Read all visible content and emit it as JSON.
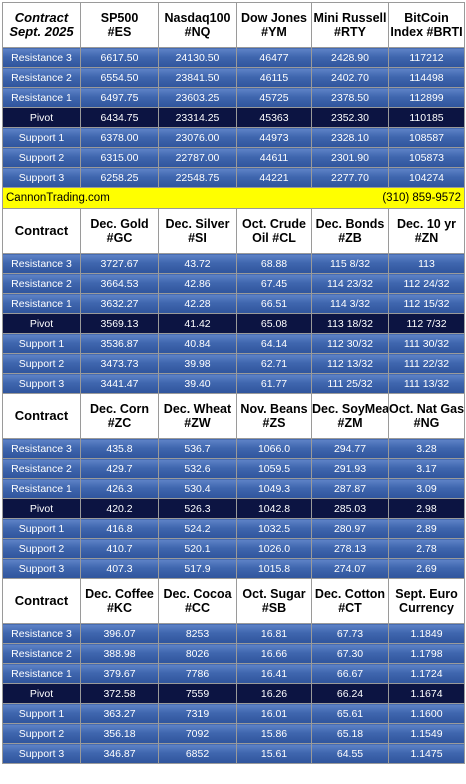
{
  "blocks": [
    {
      "headers": [
        [
          "Contract",
          "Sept. 2025"
        ],
        [
          "SP500",
          "#ES"
        ],
        [
          "Nasdaq100",
          "#NQ"
        ],
        [
          "Dow Jones",
          "#YM"
        ],
        [
          "Mini Russell",
          "#RTY"
        ],
        [
          "BitCoin",
          "Index #BRTI"
        ]
      ],
      "rows": [
        {
          "label": "Resistance 3",
          "values": [
            "6617.50",
            "24130.50",
            "46477",
            "2428.90",
            "117212"
          ]
        },
        {
          "label": "Resistance 2",
          "values": [
            "6554.50",
            "23841.50",
            "46115",
            "2402.70",
            "114498"
          ]
        },
        {
          "label": "Resistance 1",
          "values": [
            "6497.75",
            "23603.25",
            "45725",
            "2378.50",
            "112899"
          ]
        },
        {
          "label": "Pivot",
          "values": [
            "6434.75",
            "23314.25",
            "45363",
            "2352.30",
            "110185"
          ]
        },
        {
          "label": "Support 1",
          "values": [
            "6378.00",
            "23076.00",
            "44973",
            "2328.10",
            "108587"
          ]
        },
        {
          "label": "Support 2",
          "values": [
            "6315.00",
            "22787.00",
            "44611",
            "2301.90",
            "105873"
          ]
        },
        {
          "label": "Support 3",
          "values": [
            "6258.25",
            "22548.75",
            "44221",
            "2277.70",
            "104274"
          ]
        }
      ]
    },
    {
      "headers": [
        [
          "Contract",
          ""
        ],
        [
          "Dec. Gold",
          "#GC"
        ],
        [
          "Dec. Silver",
          "#SI"
        ],
        [
          "Oct. Crude",
          "Oil #CL"
        ],
        [
          "Dec. Bonds",
          "#ZB"
        ],
        [
          "Dec. 10 yr",
          "#ZN"
        ]
      ],
      "rows": [
        {
          "label": "Resistance 3",
          "values": [
            "3727.67",
            "43.72",
            "68.88",
            "115  8/32",
            "113"
          ]
        },
        {
          "label": "Resistance 2",
          "values": [
            "3664.53",
            "42.86",
            "67.45",
            "114 23/32",
            "112 24/32"
          ]
        },
        {
          "label": "Resistance 1",
          "values": [
            "3632.27",
            "42.28",
            "66.51",
            "114  3/32",
            "112 15/32"
          ]
        },
        {
          "label": "Pivot",
          "values": [
            "3569.13",
            "41.42",
            "65.08",
            "113 18/32",
            "112  7/32"
          ]
        },
        {
          "label": "Support 1",
          "values": [
            "3536.87",
            "40.84",
            "64.14",
            "112 30/32",
            "111 30/32"
          ]
        },
        {
          "label": "Support 2",
          "values": [
            "3473.73",
            "39.98",
            "62.71",
            "112 13/32",
            "111 22/32"
          ]
        },
        {
          "label": "Support 3",
          "values": [
            "3441.47",
            "39.40",
            "61.77",
            "111 25/32",
            "111 13/32"
          ]
        }
      ]
    },
    {
      "headers": [
        [
          "Contract",
          ""
        ],
        [
          "Dec. Corn",
          "#ZC"
        ],
        [
          "Dec.  Wheat",
          "#ZW"
        ],
        [
          "Nov. Beans",
          "#ZS"
        ],
        [
          "Dec. SoyMeal",
          "#ZM"
        ],
        [
          "Oct. Nat Gas",
          "#NG"
        ]
      ],
      "rows": [
        {
          "label": "Resistance 3",
          "values": [
            "435.8",
            "536.7",
            "1066.0",
            "294.77",
            "3.28"
          ]
        },
        {
          "label": "Resistance 2",
          "values": [
            "429.7",
            "532.6",
            "1059.5",
            "291.93",
            "3.17"
          ]
        },
        {
          "label": "Resistance 1",
          "values": [
            "426.3",
            "530.4",
            "1049.3",
            "287.87",
            "3.09"
          ]
        },
        {
          "label": "Pivot",
          "values": [
            "420.2",
            "526.3",
            "1042.8",
            "285.03",
            "2.98"
          ]
        },
        {
          "label": "Support 1",
          "values": [
            "416.8",
            "524.2",
            "1032.5",
            "280.97",
            "2.89"
          ]
        },
        {
          "label": "Support 2",
          "values": [
            "410.7",
            "520.1",
            "1026.0",
            "278.13",
            "2.78"
          ]
        },
        {
          "label": "Support 3",
          "values": [
            "407.3",
            "517.9",
            "1015.8",
            "274.07",
            "2.69"
          ]
        }
      ]
    },
    {
      "headers": [
        [
          "Contract",
          ""
        ],
        [
          "Dec. Coffee",
          "#KC"
        ],
        [
          "Dec. Cocoa",
          "#CC"
        ],
        [
          "Oct. Sugar",
          "#SB"
        ],
        [
          "Dec. Cotton",
          "#CT"
        ],
        [
          "Sept. Euro",
          "Currency"
        ]
      ],
      "rows": [
        {
          "label": "Resistance 3",
          "values": [
            "396.07",
            "8253",
            "16.81",
            "67.73",
            "1.1849"
          ]
        },
        {
          "label": "Resistance 2",
          "values": [
            "388.98",
            "8026",
            "16.66",
            "67.30",
            "1.1798"
          ]
        },
        {
          "label": "Resistance 1",
          "values": [
            "379.67",
            "7786",
            "16.41",
            "66.67",
            "1.1724"
          ]
        },
        {
          "label": "Pivot",
          "values": [
            "372.58",
            "7559",
            "16.26",
            "66.24",
            "1.1674"
          ]
        },
        {
          "label": "Support 1",
          "values": [
            "363.27",
            "7319",
            "16.01",
            "65.61",
            "1.1600"
          ]
        },
        {
          "label": "Support 2",
          "values": [
            "356.18",
            "7092",
            "15.86",
            "65.18",
            "1.1549"
          ]
        },
        {
          "label": "Support 3",
          "values": [
            "346.87",
            "6852",
            "15.61",
            "64.55",
            "1.1475"
          ]
        }
      ]
    }
  ],
  "banner": {
    "left": "CannonTrading.com",
    "right": "(310) 859-9572",
    "bg_color": "#ffff00"
  },
  "colors": {
    "row_top": "#5f84c8",
    "row_bottom": "#2f549c",
    "pivot": "#0c1442",
    "header_bg": "#ffffff"
  }
}
